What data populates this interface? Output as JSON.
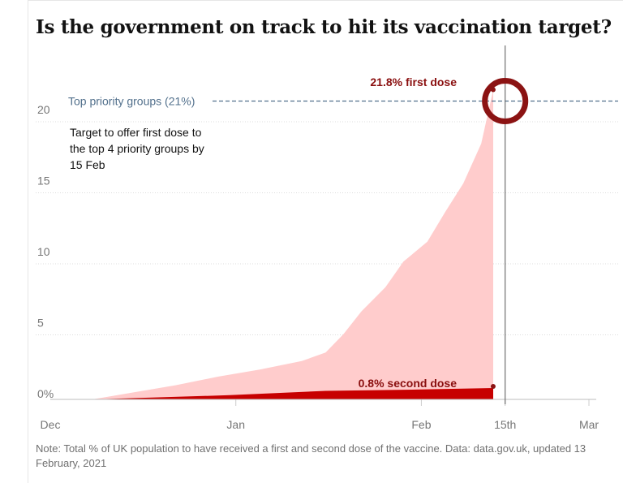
{
  "title": "Is the government on track to hit its vaccination target?",
  "note": "Note: Total % of UK population to have received a first and second dose of the vaccine. Data: data.gov.uk, updated 13 February, 2021",
  "colors": {
    "first_dose_fill": "#ffcccc",
    "second_dose_fill": "#c70000",
    "highlight_ring": "#8b1313",
    "target_line": "#52708c",
    "gridline": "#dcdcdc"
  },
  "chart_data": {
    "type": "area",
    "title": "Is the government on track to hit its vaccination target?",
    "xlabel": "",
    "ylabel": "",
    "x_ticks": [
      "Dec",
      "Jan",
      "Feb",
      "15th",
      "Mar"
    ],
    "y_ticks": [
      "0%",
      "5",
      "10",
      "15",
      "20"
    ],
    "ylim": [
      0,
      22
    ],
    "xlim": [
      "2020-12-01",
      "2021-03-01"
    ],
    "grid": true,
    "series": [
      {
        "name": "first dose",
        "points": [
          [
            "2020-12-08",
            0.0
          ],
          [
            "2020-12-15",
            0.5
          ],
          [
            "2020-12-22",
            1.0
          ],
          [
            "2020-12-29",
            1.6
          ],
          [
            "2021-01-05",
            2.1
          ],
          [
            "2021-01-12",
            2.7
          ],
          [
            "2021-01-16",
            3.3
          ],
          [
            "2021-01-19",
            4.6
          ],
          [
            "2021-01-22",
            6.2
          ],
          [
            "2021-01-26",
            7.9
          ],
          [
            "2021-01-29",
            9.7
          ],
          [
            "2021-02-02",
            11.1
          ],
          [
            "2021-02-05",
            13.2
          ],
          [
            "2021-02-08",
            15.2
          ],
          [
            "2021-02-11",
            18.0
          ],
          [
            "2021-02-13",
            21.8
          ]
        ]
      },
      {
        "name": "second dose",
        "points": [
          [
            "2020-12-08",
            0.0
          ],
          [
            "2020-12-31",
            0.3
          ],
          [
            "2021-01-16",
            0.6
          ],
          [
            "2021-02-01",
            0.7
          ],
          [
            "2021-02-13",
            0.8
          ]
        ]
      }
    ],
    "target": {
      "label": "Top priority groups (21%)",
      "value": 21
    },
    "target_date": "2021-02-15",
    "annotations": {
      "first_dose_label": "21.8% first dose",
      "second_dose_label": "0.8% second dose",
      "target_note": [
        "Target to offer first dose to",
        "the top 4 priority groups by",
        "15 Feb"
      ]
    }
  }
}
